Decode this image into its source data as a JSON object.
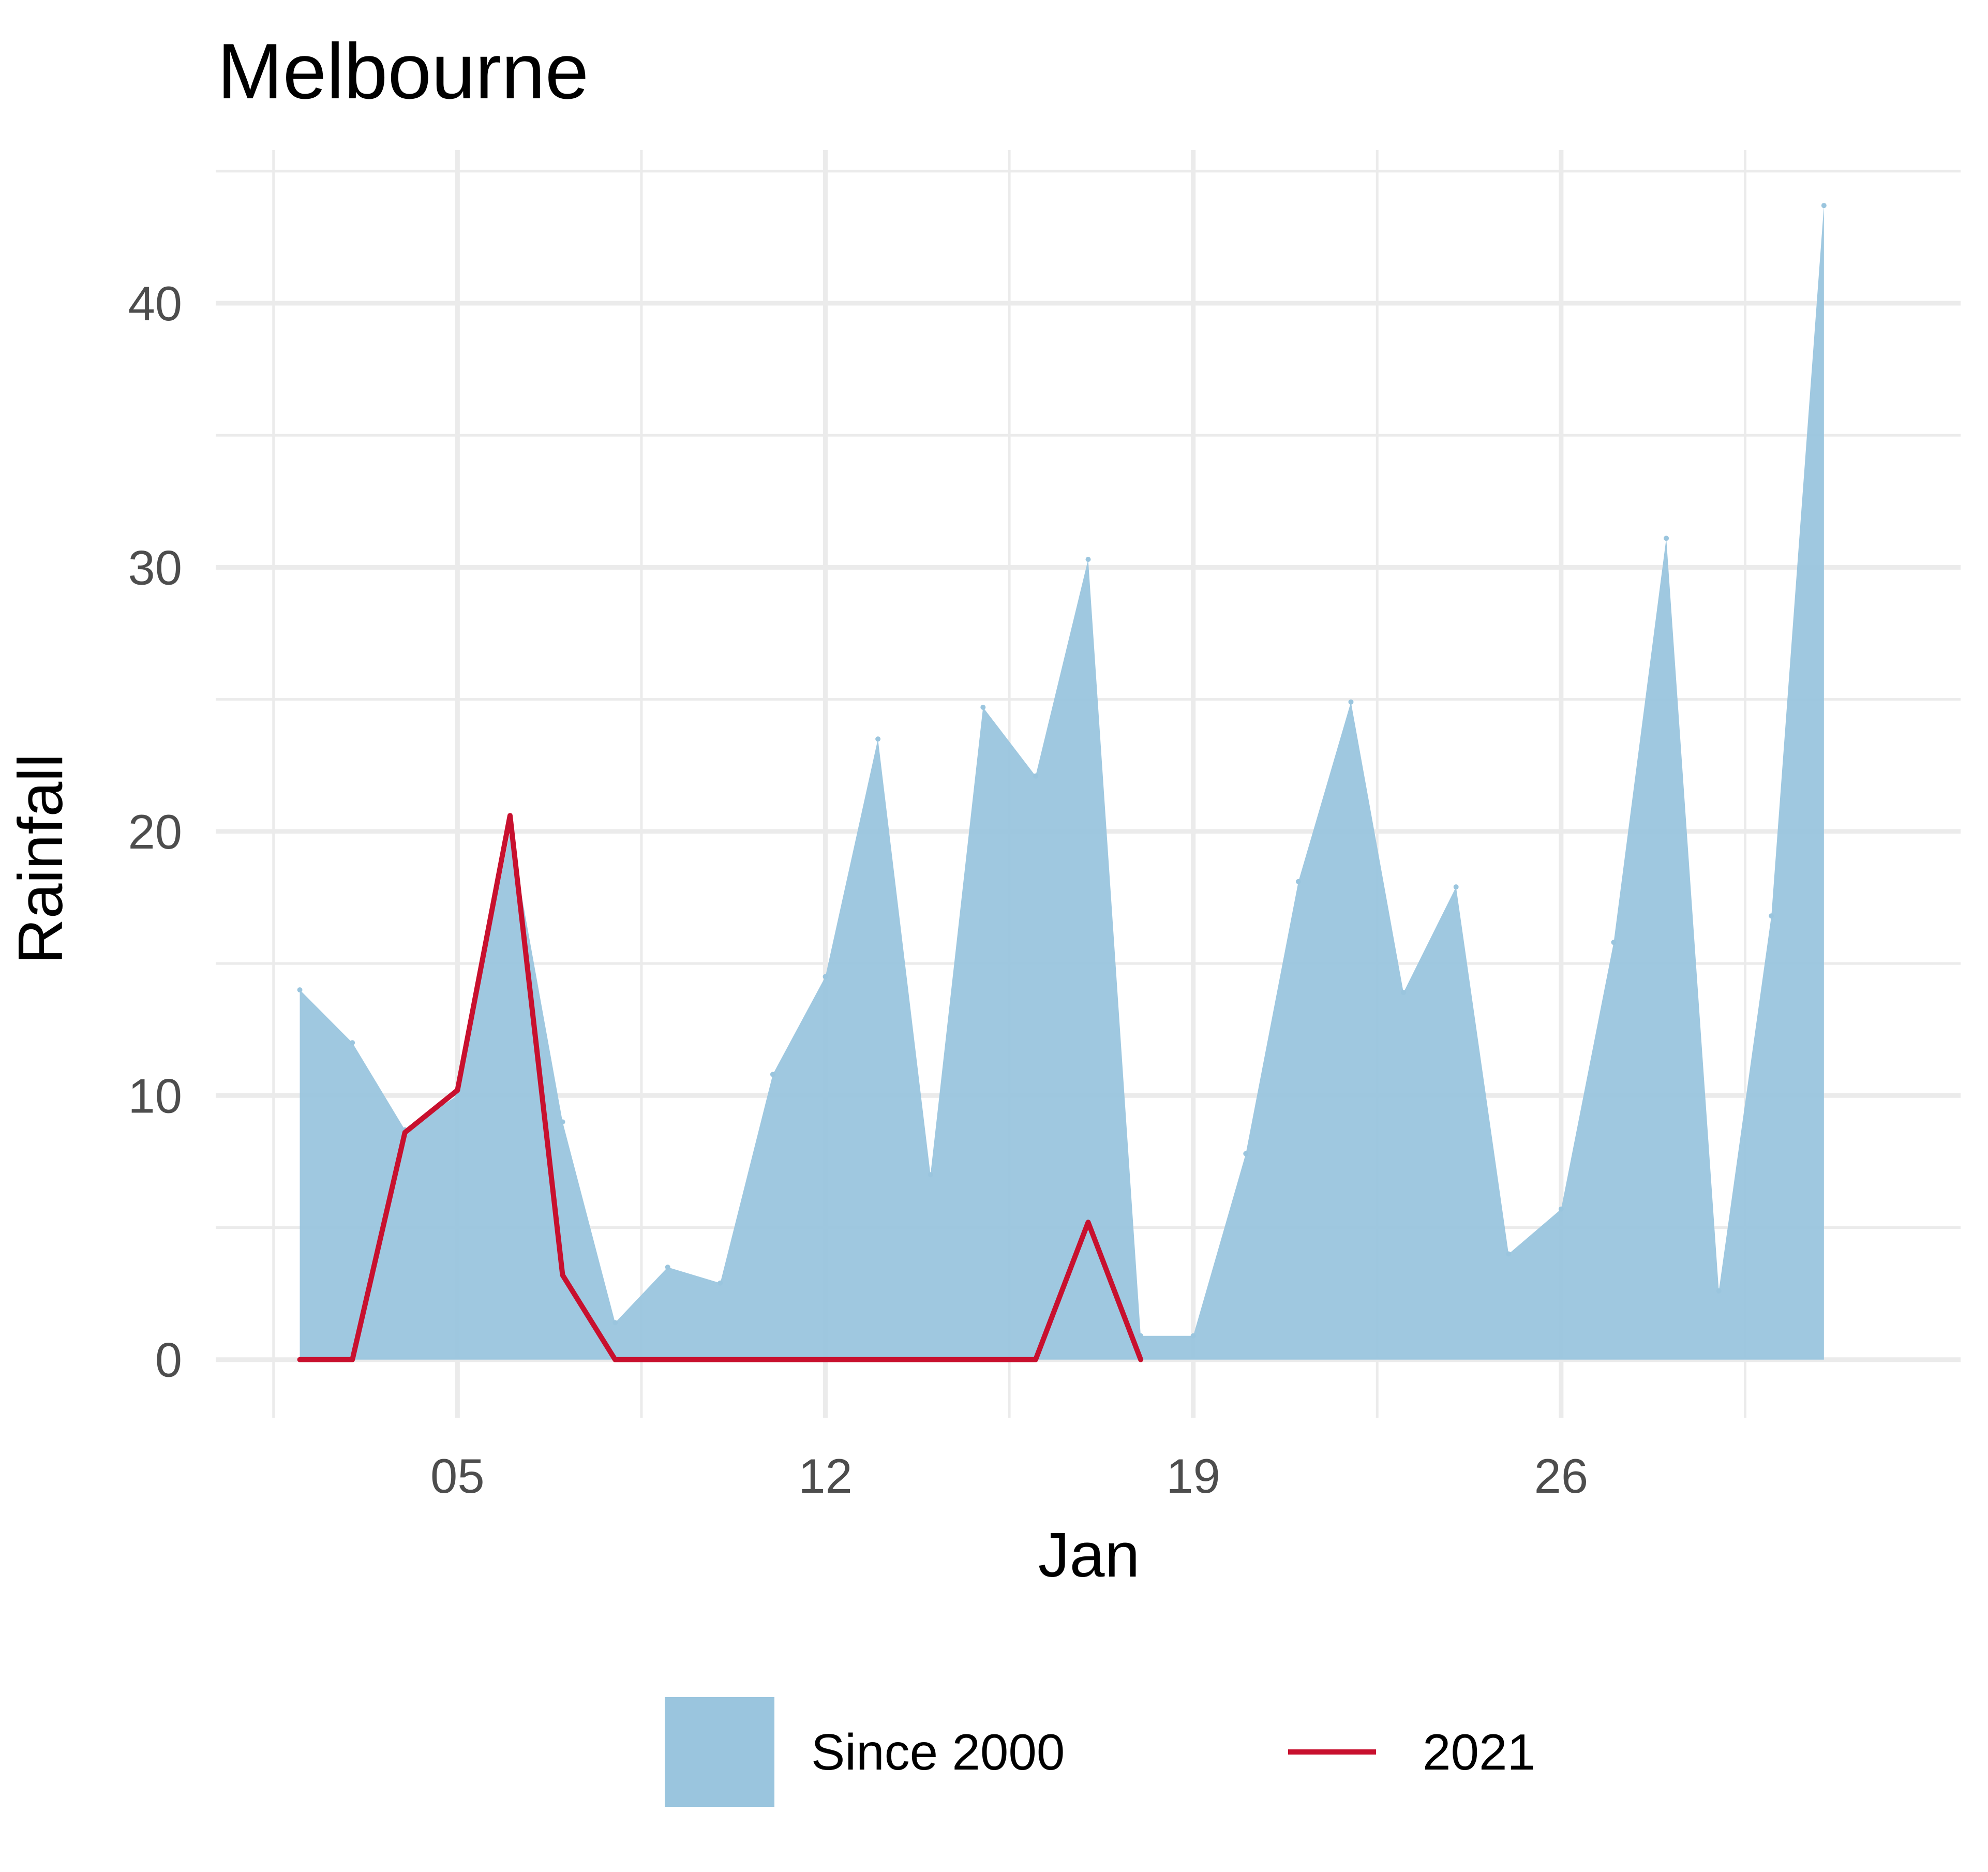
{
  "chart_data": {
    "type": "area",
    "title": "Melbourne",
    "xlabel": "Jan",
    "ylabel": "Rainfall",
    "xlim": [
      0.4,
      33.6
    ],
    "ylim": [
      -2.2,
      45.8
    ],
    "x_ticks": [
      {
        "value": 5,
        "label": "05"
      },
      {
        "value": 12,
        "label": "12"
      },
      {
        "value": 19,
        "label": "19"
      },
      {
        "value": 26,
        "label": "26"
      }
    ],
    "x_minor": [
      1.5,
      8.5,
      15.5,
      22.5,
      29.5
    ],
    "y_ticks": [
      {
        "value": 0,
        "label": "0"
      },
      {
        "value": 10,
        "label": "10"
      },
      {
        "value": 20,
        "label": "20"
      },
      {
        "value": 30,
        "label": "30"
      },
      {
        "value": 40,
        "label": "40"
      }
    ],
    "y_minor": [
      5,
      15,
      25,
      35,
      45
    ],
    "grid": true,
    "legend_position": "bottom",
    "series": [
      {
        "name": "Since 2000",
        "kind": "area",
        "color": "#9ac5de",
        "x": [
          2,
          3,
          4,
          5,
          6,
          7,
          8,
          9,
          10,
          11,
          12,
          13,
          14,
          15,
          16,
          17,
          18,
          19,
          20,
          21,
          22,
          23,
          24,
          25,
          26,
          27,
          28,
          29,
          30,
          31
        ],
        "values": [
          14,
          12,
          8.7,
          10,
          20,
          9,
          1.4,
          3.5,
          2.9,
          10.8,
          14.5,
          23.5,
          7,
          24.7,
          22.1,
          30.3,
          0.9,
          0.9,
          7.8,
          18.1,
          24.9,
          13.9,
          17.9,
          4,
          5.7,
          15.8,
          31.1,
          2.6,
          16.8,
          43.7
        ]
      },
      {
        "name": "2021",
        "kind": "line",
        "color": "#c8102e",
        "x": [
          2,
          3,
          4,
          5,
          6,
          7,
          8,
          9,
          10,
          11,
          12,
          13,
          14,
          15,
          16,
          17,
          18
        ],
        "values": [
          0,
          0,
          8.6,
          10.2,
          20.6,
          3.2,
          0,
          0,
          0,
          0,
          0,
          0,
          0,
          0,
          0,
          5.2,
          0
        ]
      }
    ]
  }
}
